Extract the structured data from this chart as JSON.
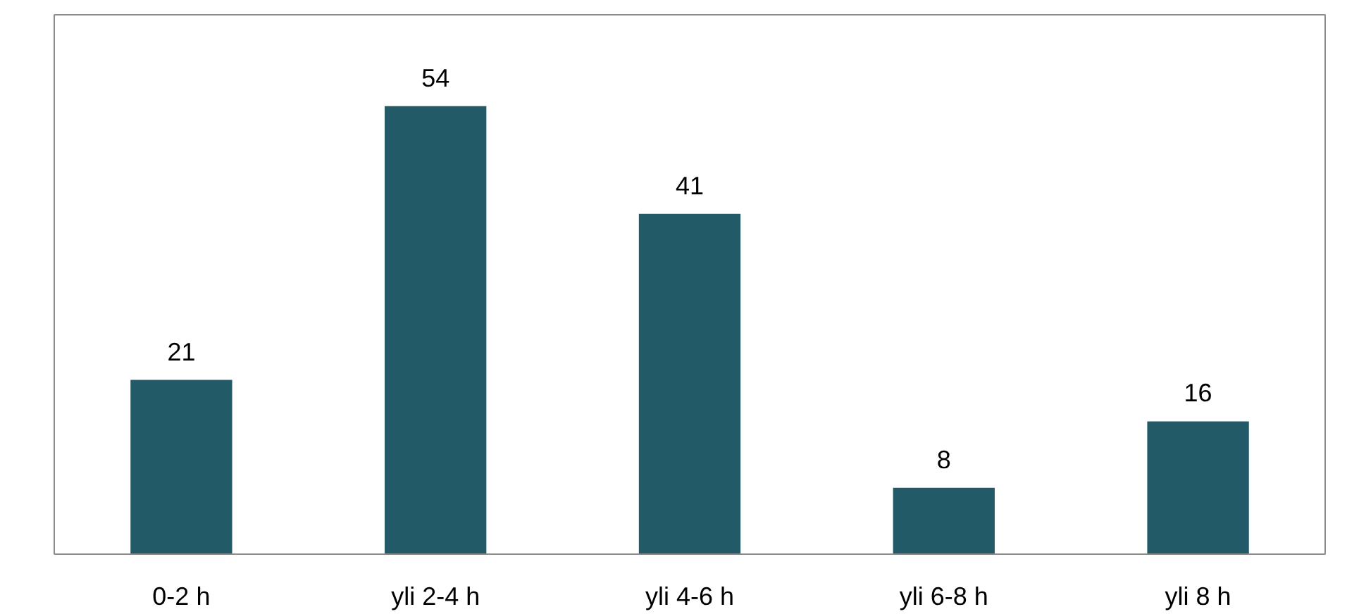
{
  "chart_data": {
    "type": "bar",
    "categories": [
      "0-2 h",
      "yli 2-4 h",
      "yli 4-6 h",
      "yli 6-8 h",
      "yli 8 h"
    ],
    "values": [
      21,
      54,
      41,
      8,
      16
    ],
    "color": "#235a68",
    "data_labels": true,
    "ylim": [
      0,
      65
    ],
    "grid": false
  }
}
